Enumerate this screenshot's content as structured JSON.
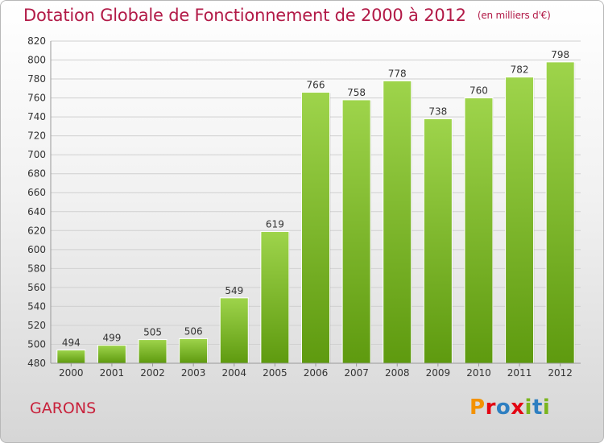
{
  "header": {
    "title": "Dotation Globale de Fonctionnement de 2000 à 2012",
    "unit": "(en milliers d'€)"
  },
  "footer": {
    "commune": "GARONS",
    "brand": "Proxiti",
    "brand_letters": [
      "P",
      "r",
      "o",
      "x",
      "i",
      "t",
      "i"
    ],
    "brand_colors": [
      "#f39200",
      "#e30613",
      "#2e7fc1",
      "#e30613",
      "#7ab51d",
      "#2e7fc1",
      "#7ab51d"
    ]
  },
  "colors": {
    "title": "#b21a47",
    "bar_top": "#9ed44b",
    "bar_bottom": "#5e9a0f",
    "grid": "#d0d0d0"
  },
  "chart_data": {
    "type": "bar",
    "title": "Dotation Globale de Fonctionnement de 2000 à 2012",
    "subtitle": "(en milliers d'€)",
    "categories": [
      "2000",
      "2001",
      "2002",
      "2003",
      "2004",
      "2005",
      "2006",
      "2007",
      "2008",
      "2009",
      "2010",
      "2011",
      "2012"
    ],
    "values": [
      494,
      499,
      505,
      506,
      549,
      619,
      766,
      758,
      778,
      738,
      760,
      782,
      798
    ],
    "ylim": [
      480,
      820
    ],
    "yticks": [
      480,
      500,
      520,
      540,
      560,
      580,
      600,
      620,
      640,
      660,
      680,
      700,
      720,
      740,
      760,
      780,
      800,
      820
    ],
    "grid": true,
    "xlabel": "",
    "ylabel": ""
  }
}
